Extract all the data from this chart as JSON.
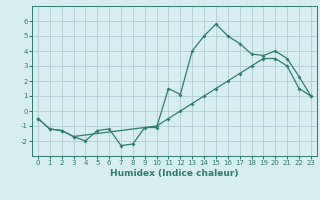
{
  "line1_x": [
    0,
    1,
    2,
    3,
    4,
    5,
    6,
    7,
    8,
    9,
    10,
    11,
    12,
    13,
    14,
    15,
    16,
    17,
    18,
    19,
    20,
    21,
    22,
    23
  ],
  "line1_y": [
    -0.5,
    -1.2,
    -1.3,
    -1.7,
    -2.0,
    -1.3,
    -1.2,
    -2.3,
    -2.2,
    -1.1,
    -1.1,
    1.5,
    1.1,
    4.0,
    5.0,
    5.8,
    5.0,
    4.5,
    3.8,
    3.7,
    4.0,
    3.5,
    2.3,
    1.0
  ],
  "line2_x": [
    0,
    1,
    2,
    3,
    10,
    11,
    12,
    13,
    14,
    15,
    16,
    17,
    18,
    19,
    20,
    21,
    22,
    23
  ],
  "line2_y": [
    -0.5,
    -1.2,
    -1.3,
    -1.7,
    -1.0,
    -0.5,
    0.0,
    0.5,
    1.0,
    1.5,
    2.0,
    2.5,
    3.0,
    3.5,
    3.5,
    3.0,
    1.5,
    1.0
  ],
  "color": "#2e7d6e",
  "bg_color": "#d6eef0",
  "grid_color": "#b0cdd4",
  "xlabel": "Humidex (Indice chaleur)",
  "ylim": [
    -3,
    7
  ],
  "xlim": [
    -0.5,
    23.5
  ],
  "yticks": [
    -2,
    -1,
    0,
    1,
    2,
    3,
    4,
    5,
    6
  ],
  "xticks": [
    0,
    1,
    2,
    3,
    4,
    5,
    6,
    7,
    8,
    9,
    10,
    11,
    12,
    13,
    14,
    15,
    16,
    17,
    18,
    19,
    20,
    21,
    22,
    23
  ],
  "xlabel_fontsize": 6.5,
  "tick_fontsize": 5.0,
  "linewidth": 0.9,
  "markersize": 2.0
}
